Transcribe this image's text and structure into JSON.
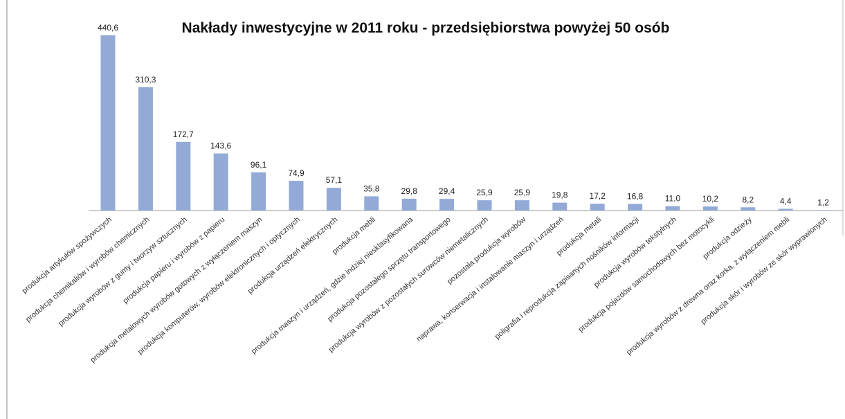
{
  "chart_data": {
    "type": "bar",
    "title": "Nakłady inwestycyjne w 2011 roku - przedsiębiorstwa  powyżej 50 osób",
    "categories": [
      "produkcja artykułów spożywczych",
      "produkcja chemikaliów i wyrobów chemicznych",
      "produkcja wyrobów z gumy i tworzyw sztucznych",
      "produkcja papieru i wyrobów z papieru",
      "produkcja metalowych wyrobów gotowych z wyłączeniem maszyn",
      "produkcja komputerów, wyrobów elektronicznych i optycznych",
      "produkcja urządzeń elektrycznych",
      "produkcja mebli",
      "produkcja maszyn i urządzeń, gdzie indziej niesklasyfikowana",
      "produkcja pozostałego sprzętu transportowego",
      "produkcja wyrobów z pozostałych surowców niemetalicznych",
      "pozostała produkcja wyrobów",
      "naprawa, konserwacja i instalowanie maszyn i urządzeń",
      "produkcja metali",
      "poligrafia i reprodukcja zapisanych nośników informacji",
      "produkcja wyrobów tekstylnych",
      "produkcja pojazdów samochodowych bez motocykli",
      "produkcja odzieży",
      "produkcja wyrobów z drewna oraz korka, z wyłączeniem mebli",
      "produkcja skór i wyrobów ze skór wyprawionych"
    ],
    "values": [
      440.6,
      310.3,
      172.7,
      143.6,
      96.1,
      74.9,
      57.1,
      35.8,
      29.8,
      29.4,
      25.9,
      25.9,
      19.8,
      17.2,
      16.8,
      11.0,
      10.2,
      8.2,
      4.4,
      1.2
    ],
    "value_labels": [
      "440,6",
      "310,3",
      "172,7",
      "143,6",
      "96,1",
      "74,9",
      "57,1",
      "35,8",
      "29,8",
      "29,4",
      "25,9",
      "25,9",
      "19,8",
      "17,2",
      "16,8",
      "11,0",
      "10,2",
      "8,2",
      "4,4",
      "1,2"
    ],
    "color": "#94aad6"
  }
}
